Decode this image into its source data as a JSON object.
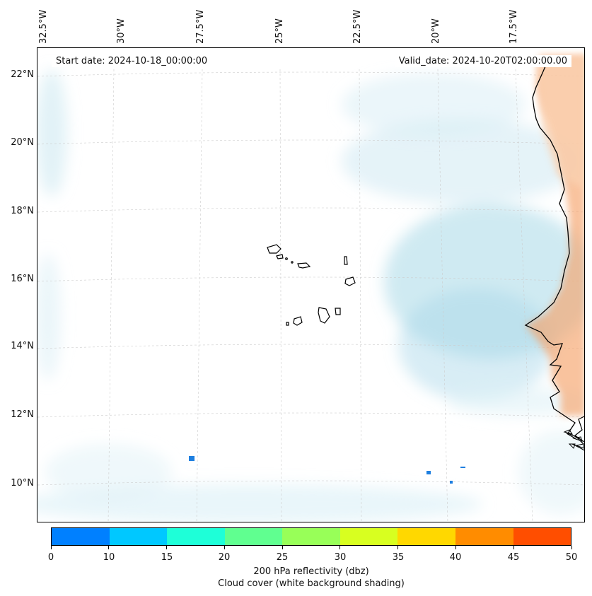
{
  "map": {
    "start_date": "Start date: 2024-10-18_00:00:00",
    "valid_date": "Valid_date: 2024-10-20T02:00:00.00",
    "lon_labels": [
      "32.5°W",
      "30°W",
      "27.5°W",
      "25°W",
      "22.5°W",
      "20°W",
      "17.5°W"
    ],
    "lat_labels": [
      "22°N",
      "20°N",
      "18°N",
      "16°N",
      "14°N",
      "12°N",
      "10°N"
    ],
    "colors": {
      "land_fill": "#f6a36a",
      "cloud": "#a8d8e8",
      "reflectivity_blue": "#1e7fe0",
      "coast": "#000000",
      "grid": "#cccccc"
    }
  },
  "colorbar": {
    "ticks": [
      "0",
      "10",
      "15",
      "20",
      "25",
      "30",
      "35",
      "40",
      "45",
      "50"
    ],
    "colors": [
      "#0080ff",
      "#00c8ff",
      "#1effd8",
      "#60ff90",
      "#98ff58",
      "#d8ff20",
      "#ffd800",
      "#ff8c00",
      "#ff4e00"
    ],
    "title_line1": "200 hPa reflectivity (dbz)",
    "title_line2": "Cloud cover (white background shading)"
  }
}
